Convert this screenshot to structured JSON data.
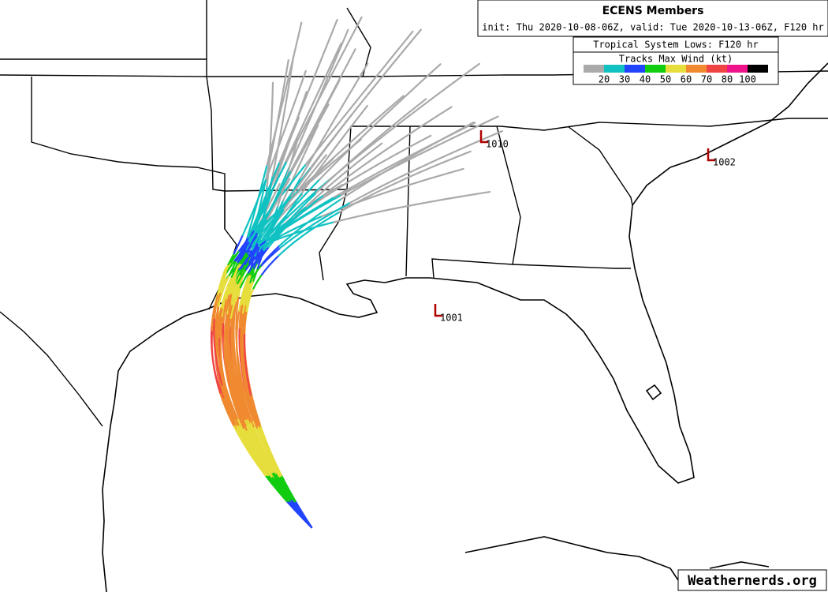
{
  "header": {
    "title": "ECENS Members",
    "subtitle": "init: Thu 2020-10-08-06Z, valid: Tue 2020-10-13-06Z, F120 hr"
  },
  "legend": {
    "lows_title": "Tropical System Lows: F120 hr",
    "wind_title": "Tracks Max Wind (kt)",
    "colors": [
      "#aaaaaa",
      "#11c2c2",
      "#2244ff",
      "#11cc11",
      "#e6de3c",
      "#f08a30",
      "#f04444",
      "#f0148c",
      "#000000"
    ],
    "labels": [
      20,
      30,
      40,
      50,
      60,
      70,
      80,
      100
    ]
  },
  "lows": [
    1010,
    1002,
    1001
  ],
  "watermark": "Weathernerds.org"
}
